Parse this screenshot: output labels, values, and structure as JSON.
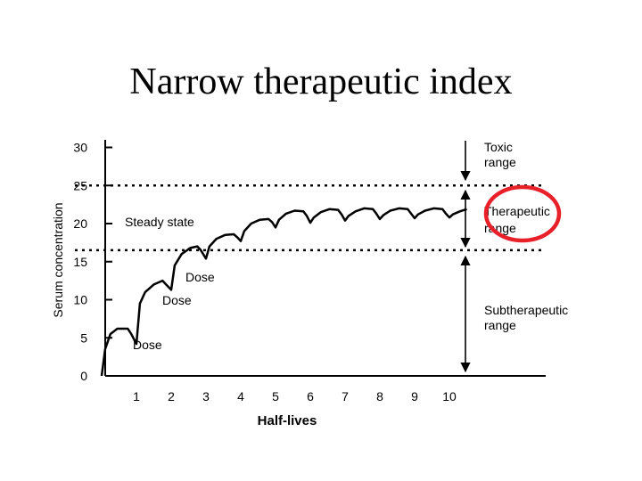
{
  "title": "Narrow therapeutic index",
  "colors": {
    "highlight": "#e8202a",
    "line": "#000000"
  },
  "chart_data": {
    "type": "line",
    "xlabel": "Half-lives",
    "ylabel": "Serum concentration",
    "xlim": [
      0,
      11
    ],
    "ylim": [
      0,
      30
    ],
    "x_ticks": [
      "1",
      "2",
      "3",
      "4",
      "5",
      "6",
      "7",
      "8",
      "9",
      "10"
    ],
    "y_ticks": [
      "0",
      "5",
      "10",
      "15",
      "20",
      "25",
      "30"
    ],
    "thresholds": [
      {
        "name": "toxic",
        "y": 25
      },
      {
        "name": "therapeutic-lower",
        "y": 16.5
      }
    ],
    "series": [
      {
        "name": "",
        "points": [
          [
            0,
            0
          ],
          [
            0.1,
            3.5
          ],
          [
            0.25,
            5.5
          ],
          [
            0.45,
            6.2
          ],
          [
            0.75,
            6.2
          ],
          [
            0.85,
            5.5
          ],
          [
            1,
            4.2
          ],
          [
            1.1,
            9.5
          ],
          [
            1.25,
            11
          ],
          [
            1.5,
            12
          ],
          [
            1.75,
            12.5
          ],
          [
            1.85,
            12
          ],
          [
            2,
            11.3
          ],
          [
            2.1,
            14.5
          ],
          [
            2.3,
            16
          ],
          [
            2.55,
            16.8
          ],
          [
            2.75,
            17
          ],
          [
            2.85,
            16.5
          ],
          [
            3,
            15.4
          ],
          [
            3.1,
            17
          ],
          [
            3.3,
            18
          ],
          [
            3.55,
            18.5
          ],
          [
            3.8,
            18.6
          ],
          [
            3.9,
            18.2
          ],
          [
            4,
            17.7
          ],
          [
            4.1,
            19
          ],
          [
            4.3,
            20
          ],
          [
            4.55,
            20.5
          ],
          [
            4.8,
            20.6
          ],
          [
            4.9,
            20.2
          ],
          [
            5,
            19.5
          ],
          [
            5.1,
            20.5
          ],
          [
            5.3,
            21.3
          ],
          [
            5.55,
            21.7
          ],
          [
            5.8,
            21.6
          ],
          [
            5.9,
            21
          ],
          [
            6,
            20.1
          ],
          [
            6.1,
            20.8
          ],
          [
            6.3,
            21.5
          ],
          [
            6.55,
            21.9
          ],
          [
            6.8,
            21.8
          ],
          [
            6.9,
            21.2
          ],
          [
            7,
            20.4
          ],
          [
            7.1,
            21
          ],
          [
            7.3,
            21.6
          ],
          [
            7.55,
            22
          ],
          [
            7.8,
            21.9
          ],
          [
            7.9,
            21.3
          ],
          [
            8,
            20.6
          ],
          [
            8.1,
            21.1
          ],
          [
            8.3,
            21.7
          ],
          [
            8.55,
            22
          ],
          [
            8.8,
            21.9
          ],
          [
            8.9,
            21.3
          ],
          [
            9,
            20.7
          ],
          [
            9.1,
            21.2
          ],
          [
            9.3,
            21.7
          ],
          [
            9.55,
            22
          ],
          [
            9.8,
            21.9
          ],
          [
            9.9,
            21.3
          ],
          [
            10,
            20.8
          ],
          [
            10.1,
            21.2
          ],
          [
            10.3,
            21.6
          ],
          [
            10.5,
            21.9
          ]
        ]
      }
    ],
    "annotations": {
      "steady_state": "Steady state",
      "dose_1": "Dose",
      "dose_2": "Dose",
      "dose_3": "Dose"
    },
    "ranges": {
      "toxic": [
        "Toxic",
        "range"
      ],
      "therapeutic": [
        "Therapeutic",
        "range"
      ],
      "subtherapeutic": [
        "Subtherapeutic",
        "range"
      ]
    }
  }
}
